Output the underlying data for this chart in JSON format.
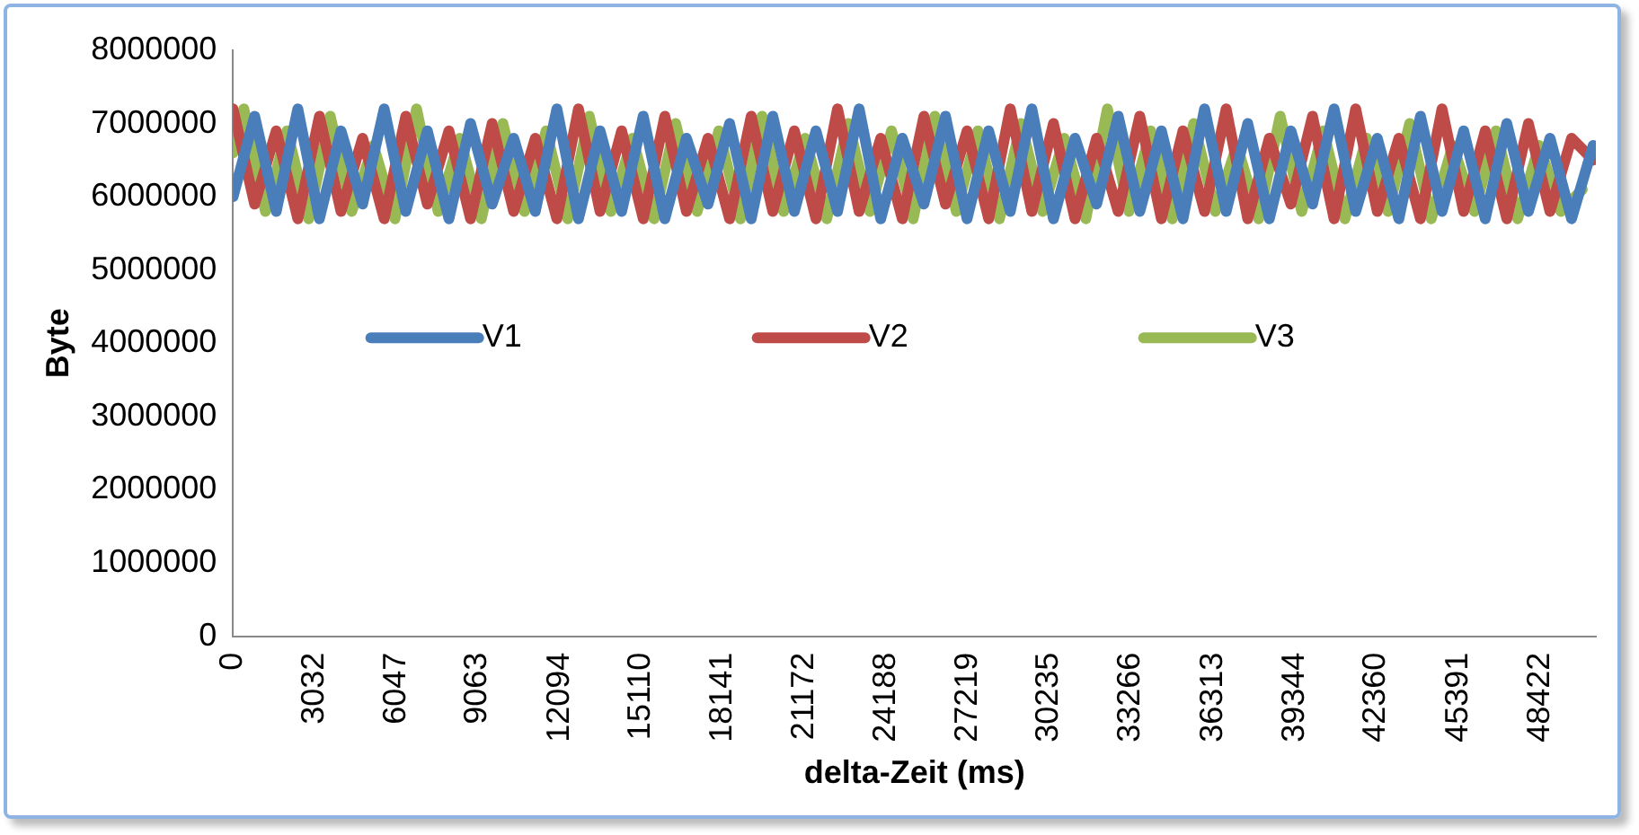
{
  "chart_data": {
    "type": "line",
    "xlabel": "delta-Zeit (ms)",
    "ylabel": "Byte",
    "xlim": [
      0,
      50500
    ],
    "xticks": [
      0,
      3032,
      6047,
      9063,
      12094,
      15110,
      18141,
      21172,
      24188,
      27219,
      30235,
      33266,
      36313,
      39344,
      42360,
      45391,
      48422
    ],
    "ylim": [
      0,
      8000000
    ],
    "yticks": [
      0,
      1000000,
      2000000,
      3000000,
      4000000,
      5000000,
      6000000,
      7000000,
      8000000
    ],
    "grid": false,
    "legend": "center",
    "marker": "none",
    "line_style": "solid",
    "x": [
      0,
      800,
      1600,
      2400,
      3200,
      4000,
      4800,
      5600,
      6400,
      7200,
      8000,
      8800,
      9600,
      10400,
      11200,
      12000,
      12800,
      13600,
      14400,
      15200,
      16000,
      16800,
      17600,
      18400,
      19200,
      20000,
      20800,
      21600,
      22400,
      23200,
      24000,
      24800,
      25600,
      26400,
      27200,
      28000,
      28800,
      29600,
      30400,
      31200,
      32000,
      32800,
      33600,
      34400,
      35200,
      36000,
      36800,
      37600,
      38400,
      39200,
      40000,
      40800,
      41600,
      42400,
      43200,
      44000,
      44800,
      45600,
      46400,
      47200,
      48000,
      48800,
      49600,
      50400
    ],
    "series": [
      {
        "name": "V1",
        "color": "#4a7ebb",
        "values": [
          6000000,
          7100000,
          5800000,
          7200000,
          5700000,
          6900000,
          5900000,
          7200000,
          5800000,
          6900000,
          5700000,
          7000000,
          5900000,
          6800000,
          5800000,
          7200000,
          5700000,
          6900000,
          5800000,
          7100000,
          5700000,
          6800000,
          5900000,
          7000000,
          5700000,
          7100000,
          5800000,
          6900000,
          5800000,
          7200000,
          5700000,
          6800000,
          5900000,
          7100000,
          5700000,
          6900000,
          5800000,
          7200000,
          5700000,
          6800000,
          5900000,
          7100000,
          5800000,
          6900000,
          5700000,
          7200000,
          5800000,
          7000000,
          5700000,
          6900000,
          5900000,
          7200000,
          5800000,
          6800000,
          5700000,
          7100000,
          5800000,
          6900000,
          5700000,
          7000000,
          5800000,
          6800000,
          5700000,
          6700000
        ]
      },
      {
        "name": "V2",
        "color": "#be4b48",
        "values": [
          7200000,
          5900000,
          6900000,
          5700000,
          7100000,
          5800000,
          6800000,
          5700000,
          7100000,
          5900000,
          6900000,
          5700000,
          7000000,
          5800000,
          6800000,
          5700000,
          7200000,
          5800000,
          6900000,
          5700000,
          7100000,
          5800000,
          6800000,
          5700000,
          7100000,
          5800000,
          6900000,
          5700000,
          7200000,
          5800000,
          6800000,
          5700000,
          7100000,
          5900000,
          6900000,
          5700000,
          7200000,
          5800000,
          7000000,
          5700000,
          6800000,
          5800000,
          7100000,
          5700000,
          6900000,
          5800000,
          7200000,
          5700000,
          6800000,
          5900000,
          7100000,
          5700000,
          7200000,
          5800000,
          6800000,
          5700000,
          7200000,
          5800000,
          6900000,
          5700000,
          7000000,
          5800000,
          6800000,
          6500000
        ]
      },
      {
        "name": "V3",
        "color": "#98b954",
        "x": [
          0,
          400,
          1200,
          2000,
          2800,
          3600,
          4400,
          5200,
          6000,
          6800,
          7600,
          8400,
          9200,
          10000,
          10800,
          11600,
          12400,
          13200,
          14000,
          14800,
          15600,
          16400,
          17200,
          18000,
          18800,
          19600,
          20400,
          21200,
          22000,
          22800,
          23600,
          24400,
          25200,
          26000,
          26800,
          27600,
          28400,
          29200,
          30000,
          30800,
          31600,
          32400,
          33200,
          34000,
          34800,
          35600,
          36400,
          37200,
          38000,
          38800,
          39600,
          40400,
          41200,
          42000,
          42800,
          43600,
          44400,
          45200,
          46000,
          46800,
          47600,
          48400,
          49200,
          50000
        ],
        "values": [
          6600000,
          7200000,
          5800000,
          6900000,
          5700000,
          7100000,
          5800000,
          6700000,
          5700000,
          7200000,
          5800000,
          6800000,
          5700000,
          7000000,
          5800000,
          6900000,
          5700000,
          7100000,
          5800000,
          6800000,
          5700000,
          7000000,
          5800000,
          6900000,
          5700000,
          7100000,
          5800000,
          6800000,
          5700000,
          7000000,
          5800000,
          6900000,
          5700000,
          7100000,
          5800000,
          6900000,
          5700000,
          7000000,
          5800000,
          6800000,
          5700000,
          7200000,
          5800000,
          6900000,
          5700000,
          7000000,
          5800000,
          6700000,
          5700000,
          7100000,
          5800000,
          6900000,
          5700000,
          6800000,
          5800000,
          7000000,
          5700000,
          6700000,
          5800000,
          6900000,
          5700000,
          6700000,
          5800000,
          6100000
        ]
      }
    ]
  }
}
